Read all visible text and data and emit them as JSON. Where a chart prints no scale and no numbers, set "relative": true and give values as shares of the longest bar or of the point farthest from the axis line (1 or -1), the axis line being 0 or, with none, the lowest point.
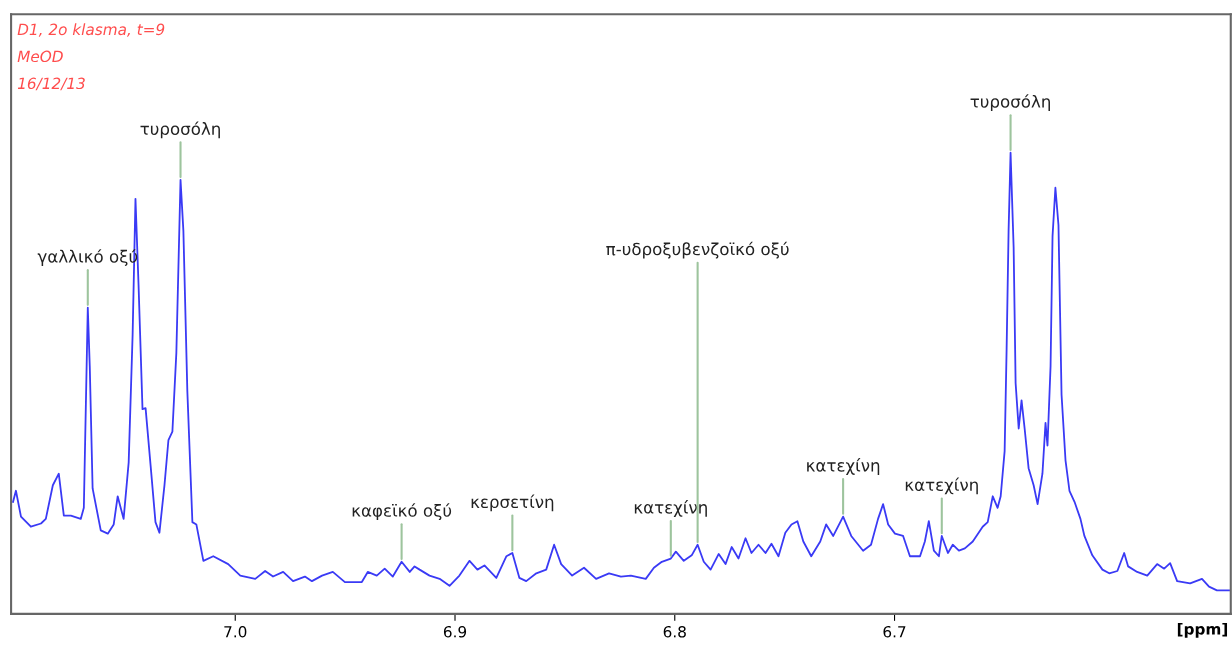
{
  "chart_data": {
    "type": "line",
    "relative": true,
    "xlabel": "[ppm]",
    "xlim": [
      7.102,
      6.547
    ],
    "xticks": [
      {
        "value": 7.0,
        "label": "7.0"
      },
      {
        "value": 6.9,
        "label": "6.9"
      },
      {
        "value": 6.8,
        "label": "6.8"
      },
      {
        "value": 6.7,
        "label": "6.7"
      }
    ],
    "tick_labels": "x",
    "grid": false,
    "legend": false,
    "marker": "none",
    "line_style": "solid",
    "annotations": [
      "D1, 2o klasma, t=9",
      "MeOD",
      "16/12/13",
      {
        "text": "γαλλικό οξύ",
        "x": 7.0671,
        "y": 0.664
      },
      {
        "text": "τυροσόλη",
        "x": 7.0249,
        "y": 0.941
      },
      {
        "text": "καφεϊκό οξύ",
        "x": 6.9243,
        "y": 0.113
      },
      {
        "text": "κερσετίνη",
        "x": 6.8739,
        "y": 0.132
      },
      {
        "text": "κατεχίνη",
        "x": 6.8018,
        "y": 0.12
      },
      {
        "text": "π-υδροξυβενζοϊκό οξύ",
        "x": 6.7896,
        "y": 0.15
      },
      {
        "text": "κατεχίνη",
        "x": 6.7234,
        "y": 0.211
      },
      {
        "text": "κατεχίνη",
        "x": 6.6785,
        "y": 0.169
      },
      {
        "text": "τυροσόλη",
        "x": 6.6472,
        "y": 1.0
      }
    ],
    "series": [
      {
        "color": "#3a3af5",
        "x": [
          7.1011,
          7.0998,
          7.0975,
          7.093,
          7.0884,
          7.0862,
          7.083,
          7.0803,
          7.078,
          7.0748,
          7.0703,
          7.0689,
          7.0671,
          7.0662,
          7.0649,
          7.0612,
          7.058,
          7.0553,
          7.0535,
          7.0508,
          7.0485,
          7.0467,
          7.0454,
          7.044,
          7.0422,
          7.0408,
          7.0385,
          7.0363,
          7.0345,
          7.0322,
          7.0304,
          7.0286,
          7.0268,
          7.0249,
          7.0236,
          7.0218,
          7.0195,
          7.0177,
          7.0145,
          7.01,
          7.0032,
          6.9977,
          6.9909,
          6.9864,
          6.9828,
          6.9782,
          6.9737,
          6.9683,
          6.9651,
          6.9605,
          6.9556,
          6.9501,
          6.9424,
          6.9397,
          6.9356,
          6.932,
          6.9283,
          6.9243,
          6.9206,
          6.9184,
          6.9161,
          6.9116,
          6.907,
          6.9025,
          6.898,
          6.8934,
          6.8898,
          6.8866,
          6.8812,
          6.8766,
          6.8739,
          6.8707,
          6.8676,
          6.863,
          6.8585,
          6.8549,
          6.8517,
          6.8467,
          6.8413,
          6.8358,
          6.8299,
          6.8245,
          6.82,
          6.8132,
          6.8095,
          6.8059,
          6.8018,
          6.7995,
          6.7959,
          6.7923,
          6.7896,
          6.7868,
          6.7837,
          6.78,
          6.7769,
          6.7741,
          6.771,
          6.7678,
          6.7651,
          6.7619,
          6.7587,
          6.756,
          6.7528,
          6.7497,
          6.7469,
          6.7442,
          6.7415,
          6.7379,
          6.7338,
          6.7311,
          6.7279,
          6.7234,
          6.7197,
          6.7143,
          6.7107,
          6.7075,
          6.7052,
          6.7029,
          6.6998,
          6.6961,
          6.693,
          6.6884,
          6.6862,
          6.6844,
          6.6821,
          6.6798,
          6.6785,
          6.6757,
          6.6735,
          6.6707,
          6.668,
          6.6644,
          6.6599,
          6.6576,
          6.6553,
          6.6531,
          6.6517,
          6.6499,
          6.649,
          6.6481,
          6.6472,
          6.6458,
          6.6449,
          6.6435,
          6.6422,
          6.6408,
          6.639,
          6.6367,
          6.6349,
          6.6327,
          6.6313,
          6.6304,
          6.629,
          6.6281,
          6.6268,
          6.6254,
          6.624,
          6.6222,
          6.6204,
          6.6181,
          6.6154,
          6.6136,
          6.61,
          6.6054,
          6.6023,
          6.5986,
          6.5955,
          6.5937,
          6.5896,
          6.585,
          6.5805,
          6.5773,
          6.5746,
          6.5714,
          6.5655,
          6.5601,
          6.5569,
          6.5533,
          6.5478
        ],
        "values": [
          0.243,
          0.267,
          0.211,
          0.189,
          0.196,
          0.206,
          0.279,
          0.304,
          0.213,
          0.213,
          0.206,
          0.23,
          0.664,
          0.537,
          0.272,
          0.181,
          0.174,
          0.194,
          0.255,
          0.206,
          0.328,
          0.605,
          0.9,
          0.713,
          0.444,
          0.446,
          0.321,
          0.199,
          0.176,
          0.279,
          0.377,
          0.395,
          0.566,
          0.941,
          0.831,
          0.483,
          0.199,
          0.194,
          0.115,
          0.125,
          0.108,
          0.083,
          0.076,
          0.093,
          0.081,
          0.091,
          0.071,
          0.081,
          0.071,
          0.083,
          0.091,
          0.069,
          0.069,
          0.091,
          0.083,
          0.098,
          0.081,
          0.113,
          0.091,
          0.103,
          0.096,
          0.083,
          0.076,
          0.061,
          0.083,
          0.115,
          0.096,
          0.105,
          0.078,
          0.125,
          0.132,
          0.078,
          0.071,
          0.088,
          0.096,
          0.15,
          0.108,
          0.083,
          0.1,
          0.076,
          0.088,
          0.081,
          0.083,
          0.076,
          0.1,
          0.113,
          0.12,
          0.135,
          0.115,
          0.127,
          0.15,
          0.113,
          0.096,
          0.13,
          0.108,
          0.145,
          0.12,
          0.164,
          0.132,
          0.15,
          0.132,
          0.152,
          0.125,
          0.176,
          0.194,
          0.201,
          0.157,
          0.125,
          0.157,
          0.194,
          0.169,
          0.211,
          0.169,
          0.137,
          0.15,
          0.206,
          0.238,
          0.194,
          0.174,
          0.169,
          0.125,
          0.125,
          0.157,
          0.201,
          0.137,
          0.125,
          0.169,
          0.132,
          0.15,
          0.137,
          0.142,
          0.157,
          0.189,
          0.199,
          0.255,
          0.23,
          0.255,
          0.353,
          0.574,
          0.831,
          1.0,
          0.794,
          0.5,
          0.402,
          0.463,
          0.402,
          0.316,
          0.279,
          0.238,
          0.304,
          0.414,
          0.365,
          0.537,
          0.819,
          0.924,
          0.843,
          0.475,
          0.333,
          0.267,
          0.243,
          0.206,
          0.169,
          0.127,
          0.096,
          0.088,
          0.093,
          0.132,
          0.103,
          0.091,
          0.083,
          0.108,
          0.098,
          0.11,
          0.071,
          0.066,
          0.076,
          0.059,
          0.051,
          0.051
        ]
      }
    ]
  }
}
